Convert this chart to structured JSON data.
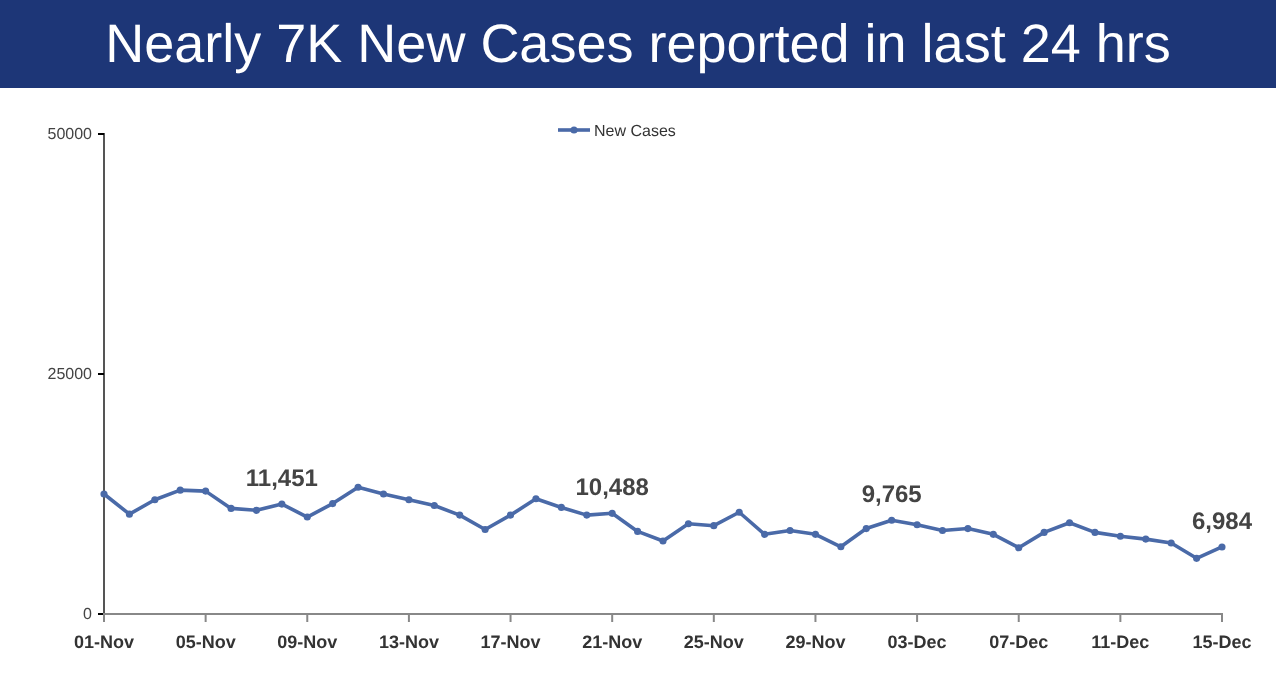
{
  "chart_data": {
    "type": "line",
    "title": "Nearly 7K New Cases reported in last 24 hrs",
    "categories": [
      "01-Nov",
      null,
      null,
      null,
      "05-Nov",
      null,
      null,
      null,
      "09-Nov",
      null,
      null,
      null,
      "13-Nov",
      null,
      null,
      null,
      "17-Nov",
      null,
      null,
      null,
      "21-Nov",
      null,
      null,
      null,
      "25-Nov",
      null,
      null,
      null,
      "29-Nov",
      null,
      null,
      null,
      "03-Dec",
      null,
      null,
      null,
      "07-Dec",
      null,
      null,
      null,
      "11-Dec",
      null,
      null,
      null,
      "15-Dec"
    ],
    "series": [
      {
        "name": "New Cases",
        "color": "#4a6aa8",
        "values": [
          12500,
          10400,
          11900,
          12900,
          12800,
          11000,
          10800,
          11451,
          10100,
          11500,
          13200,
          12500,
          11900,
          11300,
          10300,
          8800,
          10300,
          12000,
          11100,
          10300,
          10488,
          8600,
          7600,
          9400,
          9200,
          10600,
          8300,
          8700,
          8300,
          7000,
          8900,
          9765,
          9300,
          8700,
          8900,
          8300,
          6900,
          8500,
          9500,
          8500,
          8100,
          7800,
          7400,
          5800,
          6984
        ],
        "value_labels": [
          null,
          null,
          null,
          null,
          null,
          null,
          null,
          "11,451",
          null,
          null,
          null,
          null,
          null,
          null,
          null,
          null,
          null,
          null,
          null,
          null,
          "10,488",
          null,
          null,
          null,
          null,
          null,
          null,
          null,
          null,
          null,
          null,
          "9,765",
          null,
          null,
          null,
          null,
          null,
          null,
          null,
          null,
          null,
          null,
          null,
          null,
          "6,984"
        ]
      }
    ],
    "ylim": [
      0,
      50000
    ],
    "yticks": [
      0,
      25000,
      50000
    ],
    "grid": false,
    "legend": "top",
    "marker": "circle",
    "line_style": "solid"
  }
}
